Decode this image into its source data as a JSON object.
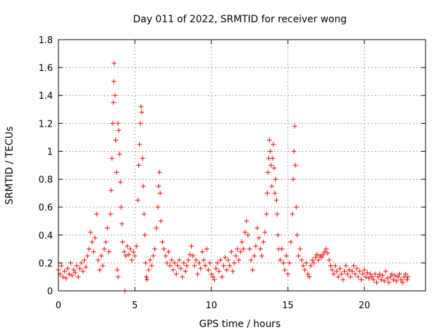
{
  "chart_data": {
    "type": "scatter",
    "title": "Day 011 of 2022, SRMTID for receiver wong",
    "xlabel": "GPS time / hours",
    "ylabel": "SRMTID / TECUs",
    "xlim": [
      0,
      24
    ],
    "ylim": [
      0,
      1.8
    ],
    "xticks": [
      0,
      5,
      10,
      15,
      20
    ],
    "xtick_labels": [
      "0",
      "5",
      "10",
      "15",
      "20"
    ],
    "yticks": [
      0,
      0.2,
      0.4,
      0.6,
      0.8,
      1,
      1.2,
      1.4,
      1.6,
      1.8
    ],
    "ytick_labels": [
      "0",
      "0.2",
      "0.4",
      "0.6",
      "0.8",
      "1",
      "1.2",
      "1.4",
      "1.6",
      "1.8"
    ],
    "grid": true,
    "marker": "+",
    "color": "#ff0000",
    "series": [
      {
        "name": "SRMTID",
        "points": [
          [
            0.0,
            0.15
          ],
          [
            0.1,
            0.12
          ],
          [
            0.2,
            0.18
          ],
          [
            0.3,
            0.1
          ],
          [
            0.4,
            0.14
          ],
          [
            0.5,
            0.09
          ],
          [
            0.6,
            0.16
          ],
          [
            0.7,
            0.12
          ],
          [
            0.8,
            0.2
          ],
          [
            0.9,
            0.11
          ],
          [
            1.0,
            0.15
          ],
          [
            1.1,
            0.13
          ],
          [
            1.2,
            0.18
          ],
          [
            1.3,
            0.1
          ],
          [
            1.4,
            0.16
          ],
          [
            1.5,
            0.2
          ],
          [
            1.6,
            0.14
          ],
          [
            1.7,
            0.22
          ],
          [
            1.8,
            0.17
          ],
          [
            1.9,
            0.25
          ],
          [
            2.0,
            0.3
          ],
          [
            2.1,
            0.42
          ],
          [
            2.2,
            0.35
          ],
          [
            2.3,
            0.28
          ],
          [
            2.4,
            0.38
          ],
          [
            2.5,
            0.55
          ],
          [
            2.6,
            0.22
          ],
          [
            2.7,
            0.15
          ],
          [
            2.8,
            0.25
          ],
          [
            2.9,
            0.18
          ],
          [
            3.0,
            0.3
          ],
          [
            3.1,
            0.35
          ],
          [
            3.2,
            0.45
          ],
          [
            3.3,
            0.28
          ],
          [
            3.4,
            0.55
          ],
          [
            3.45,
            0.72
          ],
          [
            3.5,
            0.95
          ],
          [
            3.55,
            1.2
          ],
          [
            3.6,
            1.35
          ],
          [
            3.62,
            1.5
          ],
          [
            3.64,
            1.63
          ],
          [
            3.7,
            1.4
          ],
          [
            3.75,
            1.08
          ],
          [
            3.8,
            0.85
          ],
          [
            3.9,
            1.2
          ],
          [
            3.95,
            1.15
          ],
          [
            4.0,
            0.98
          ],
          [
            4.05,
            0.78
          ],
          [
            4.1,
            0.6
          ],
          [
            4.15,
            0.48
          ],
          [
            3.85,
            0.15
          ],
          [
            3.9,
            0.1
          ],
          [
            4.2,
            0.35
          ],
          [
            4.3,
            0.28
          ],
          [
            4.35,
            0.0
          ],
          [
            4.4,
            0.25
          ],
          [
            4.5,
            0.32
          ],
          [
            4.6,
            0.26
          ],
          [
            4.7,
            0.3
          ],
          [
            4.8,
            0.22
          ],
          [
            4.9,
            0.28
          ],
          [
            5.0,
            0.25
          ],
          [
            5.1,
            0.32
          ],
          [
            5.2,
            0.65
          ],
          [
            5.25,
            0.9
          ],
          [
            5.3,
            1.05
          ],
          [
            5.35,
            1.2
          ],
          [
            5.4,
            1.32
          ],
          [
            5.45,
            1.28
          ],
          [
            5.5,
            0.95
          ],
          [
            5.55,
            0.75
          ],
          [
            5.6,
            0.55
          ],
          [
            5.65,
            0.4
          ],
          [
            5.7,
            0.2
          ],
          [
            5.75,
            0.1
          ],
          [
            5.8,
            0.08
          ],
          [
            5.9,
            0.15
          ],
          [
            6.0,
            0.22
          ],
          [
            6.1,
            0.18
          ],
          [
            6.2,
            0.25
          ],
          [
            6.3,
            0.3
          ],
          [
            6.4,
            0.45
          ],
          [
            6.5,
            0.6
          ],
          [
            6.55,
            0.75
          ],
          [
            6.6,
            0.85
          ],
          [
            6.65,
            0.7
          ],
          [
            6.7,
            0.5
          ],
          [
            6.8,
            0.35
          ],
          [
            6.9,
            0.3
          ],
          [
            7.0,
            0.25
          ],
          [
            7.1,
            0.2
          ],
          [
            7.2,
            0.28
          ],
          [
            7.3,
            0.18
          ],
          [
            7.4,
            0.22
          ],
          [
            7.5,
            0.15
          ],
          [
            7.6,
            0.2
          ],
          [
            7.7,
            0.12
          ],
          [
            7.8,
            0.18
          ],
          [
            7.9,
            0.22
          ],
          [
            8.0,
            0.16
          ],
          [
            8.1,
            0.1
          ],
          [
            8.2,
            0.2
          ],
          [
            8.3,
            0.14
          ],
          [
            8.4,
            0.18
          ],
          [
            8.5,
            0.22
          ],
          [
            8.6,
            0.26
          ],
          [
            8.7,
            0.32
          ],
          [
            8.8,
            0.25
          ],
          [
            8.9,
            0.18
          ],
          [
            9.0,
            0.22
          ],
          [
            9.1,
            0.12
          ],
          [
            9.2,
            0.2
          ],
          [
            9.3,
            0.16
          ],
          [
            9.4,
            0.28
          ],
          [
            9.5,
            0.22
          ],
          [
            9.6,
            0.18
          ],
          [
            9.7,
            0.3
          ],
          [
            9.8,
            0.15
          ],
          [
            9.9,
            0.2
          ],
          [
            10.0,
            0.12
          ],
          [
            10.1,
            0.1
          ],
          [
            10.2,
            0.08
          ],
          [
            10.3,
            0.16
          ],
          [
            10.4,
            0.2
          ],
          [
            10.5,
            0.14
          ],
          [
            10.6,
            0.22
          ],
          [
            10.7,
            0.1
          ],
          [
            10.8,
            0.18
          ],
          [
            10.9,
            0.24
          ],
          [
            11.0,
            0.15
          ],
          [
            11.1,
            0.22
          ],
          [
            11.2,
            0.18
          ],
          [
            11.3,
            0.28
          ],
          [
            11.4,
            0.14
          ],
          [
            11.5,
            0.2
          ],
          [
            11.6,
            0.25
          ],
          [
            11.7,
            0.3
          ],
          [
            11.8,
            0.22
          ],
          [
            11.9,
            0.28
          ],
          [
            12.0,
            0.35
          ],
          [
            12.1,
            0.3
          ],
          [
            12.2,
            0.42
          ],
          [
            12.3,
            0.5
          ],
          [
            12.4,
            0.4
          ],
          [
            12.5,
            0.3
          ],
          [
            12.6,
            0.22
          ],
          [
            12.7,
            0.15
          ],
          [
            12.8,
            0.25
          ],
          [
            12.9,
            0.32
          ],
          [
            13.0,
            0.45
          ],
          [
            13.1,
            0.38
          ],
          [
            13.2,
            0.3
          ],
          [
            13.3,
            0.25
          ],
          [
            13.4,
            0.35
          ],
          [
            13.5,
            0.42
          ],
          [
            13.6,
            0.55
          ],
          [
            13.65,
            0.7
          ],
          [
            13.7,
            0.85
          ],
          [
            13.75,
            0.95
          ],
          [
            13.8,
            1.08
          ],
          [
            13.85,
            1.0
          ],
          [
            13.9,
            0.9
          ],
          [
            13.95,
            0.75
          ],
          [
            14.0,
            0.95
          ],
          [
            14.05,
            1.05
          ],
          [
            14.1,
            0.88
          ],
          [
            14.15,
            0.7
          ],
          [
            14.2,
            0.8
          ],
          [
            14.25,
            0.65
          ],
          [
            14.3,
            0.55
          ],
          [
            14.35,
            0.4
          ],
          [
            14.4,
            0.3
          ],
          [
            14.5,
            0.22
          ],
          [
            14.6,
            0.3
          ],
          [
            14.7,
            0.2
          ],
          [
            14.8,
            0.15
          ],
          [
            14.9,
            0.25
          ],
          [
            15.0,
            0.12
          ],
          [
            15.1,
            0.2
          ],
          [
            15.2,
            0.35
          ],
          [
            15.3,
            0.55
          ],
          [
            15.35,
            0.8
          ],
          [
            15.4,
            1.0
          ],
          [
            15.45,
            1.18
          ],
          [
            15.5,
            0.9
          ],
          [
            15.55,
            0.6
          ],
          [
            15.6,
            0.4
          ],
          [
            15.7,
            0.25
          ],
          [
            15.8,
            0.3
          ],
          [
            15.9,
            0.22
          ],
          [
            16.0,
            0.18
          ],
          [
            16.1,
            0.15
          ],
          [
            16.2,
            0.2
          ],
          [
            16.3,
            0.12
          ],
          [
            16.4,
            0.1
          ],
          [
            16.5,
            0.18
          ],
          [
            16.6,
            0.22
          ],
          [
            16.7,
            0.2
          ],
          [
            16.8,
            0.24
          ],
          [
            16.9,
            0.26
          ],
          [
            17.0,
            0.22
          ],
          [
            17.1,
            0.25
          ],
          [
            17.2,
            0.24
          ],
          [
            17.3,
            0.26
          ],
          [
            17.4,
            0.28
          ],
          [
            17.5,
            0.3
          ],
          [
            17.6,
            0.27
          ],
          [
            17.7,
            0.22
          ],
          [
            17.8,
            0.18
          ],
          [
            17.9,
            0.15
          ],
          [
            18.0,
            0.12
          ],
          [
            18.1,
            0.18
          ],
          [
            18.2,
            0.14
          ],
          [
            18.3,
            0.1
          ],
          [
            18.4,
            0.16
          ],
          [
            18.5,
            0.12
          ],
          [
            18.6,
            0.08
          ],
          [
            18.7,
            0.14
          ],
          [
            18.8,
            0.18
          ],
          [
            18.9,
            0.12
          ],
          [
            19.0,
            0.15
          ],
          [
            19.1,
            0.1
          ],
          [
            19.2,
            0.14
          ],
          [
            19.3,
            0.18
          ],
          [
            19.4,
            0.12
          ],
          [
            19.5,
            0.16
          ],
          [
            19.6,
            0.1
          ],
          [
            19.7,
            0.14
          ],
          [
            19.8,
            0.08
          ],
          [
            19.9,
            0.12
          ],
          [
            20.0,
            0.15
          ],
          [
            20.1,
            0.1
          ],
          [
            20.2,
            0.13
          ],
          [
            20.3,
            0.09
          ],
          [
            20.4,
            0.12
          ],
          [
            20.5,
            0.1
          ],
          [
            20.6,
            0.08
          ],
          [
            20.7,
            0.12
          ],
          [
            20.8,
            0.06
          ],
          [
            20.9,
            0.1
          ],
          [
            21.0,
            0.12
          ],
          [
            21.1,
            0.08
          ],
          [
            21.2,
            0.11
          ],
          [
            21.3,
            0.07
          ],
          [
            21.4,
            0.14
          ],
          [
            21.5,
            0.09
          ],
          [
            21.6,
            0.06
          ],
          [
            21.7,
            0.1
          ],
          [
            21.8,
            0.12
          ],
          [
            21.9,
            0.08
          ],
          [
            22.0,
            0.11
          ],
          [
            22.1,
            0.07
          ],
          [
            22.2,
            0.1
          ],
          [
            22.3,
            0.12
          ],
          [
            22.4,
            0.08
          ],
          [
            22.5,
            0.06
          ],
          [
            22.6,
            0.1
          ],
          [
            22.7,
            0.12
          ],
          [
            22.8,
            0.08
          ],
          [
            22.85,
            0.1
          ]
        ]
      }
    ]
  }
}
